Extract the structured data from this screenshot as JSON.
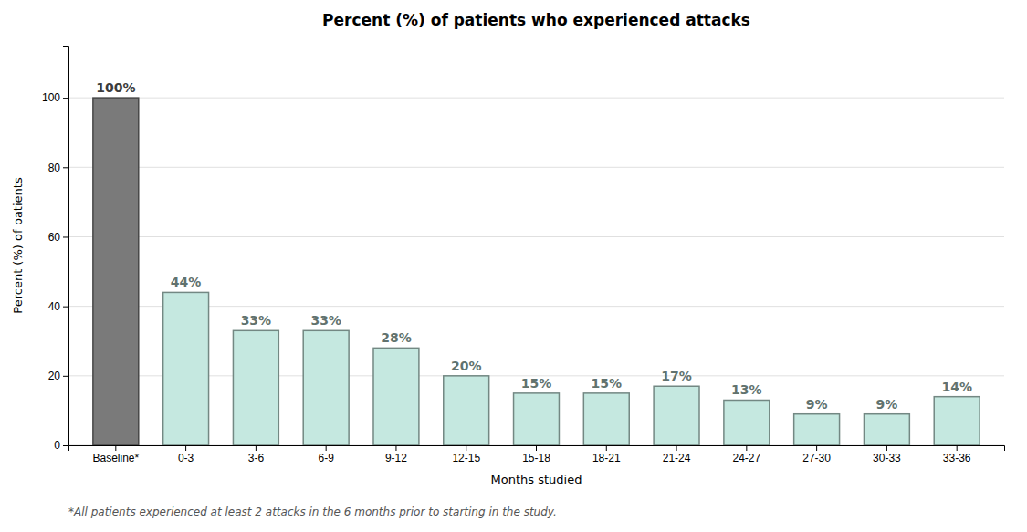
{
  "chart_data": {
    "type": "bar",
    "title": "Percent (%) of patients who experienced attacks",
    "x_label": "Months studied",
    "y_label": "Percent (%) of patients",
    "categories": [
      "Baseline*",
      "0-3",
      "3-6",
      "6-9",
      "9-12",
      "12-15",
      "15-18",
      "18-21",
      "21-24",
      "24-27",
      "27-30",
      "30-33",
      "33-36"
    ],
    "values": [
      100,
      44,
      33,
      33,
      28,
      20,
      15,
      15,
      17,
      13,
      9,
      9,
      14
    ],
    "value_labels": [
      "100%",
      "44%",
      "33%",
      "33%",
      "28%",
      "20%",
      "15%",
      "15%",
      "17%",
      "13%",
      "9%",
      "9%",
      "14%"
    ],
    "colors": [
      "#7a7a7a",
      "#c5e8e0",
      "#c5e8e0",
      "#c5e8e0",
      "#c5e8e0",
      "#c5e8e0",
      "#c5e8e0",
      "#c5e8e0",
      "#c5e8e0",
      "#c5e8e0",
      "#c5e8e0",
      "#c5e8e0",
      "#c5e8e0"
    ],
    "ylim": [
      0,
      115
    ],
    "yticks": [
      0,
      20,
      40,
      60,
      80,
      100
    ],
    "grid": true,
    "data_labels": true,
    "footnote": "*All patients experienced at least 2 attacks in the 6 months prior to starting in the study."
  }
}
